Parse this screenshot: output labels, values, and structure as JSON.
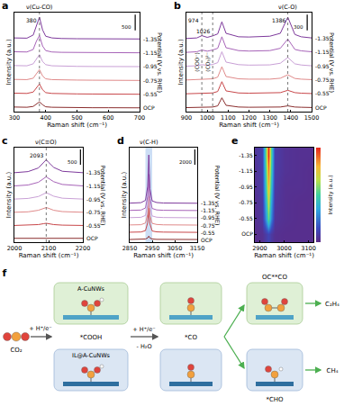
{
  "chart_data": [
    {
      "type": "line",
      "panel": "a",
      "x_label": "Raman shift (cm⁻¹)",
      "y_label": "Intensity (a.u.)",
      "y2_label": "Potential (V vs. RHE)",
      "x": [
        300,
        340,
        360,
        370,
        380,
        390,
        400,
        420,
        450,
        500,
        550,
        600,
        650,
        700
      ],
      "series": [
        {
          "name": "OCP",
          "color": "#8b2e2e",
          "values": [
            0.1,
            0.08,
            0.15,
            0.35,
            0.55,
            0.3,
            0.12,
            0.08,
            0.06,
            0.05,
            0.04,
            0.04,
            0.03,
            0.03
          ]
        },
        {
          "name": "-0.55",
          "color": "#c8474a",
          "values": [
            1.3,
            1.28,
            1.4,
            1.75,
            2.1,
            1.6,
            1.35,
            1.28,
            1.25,
            1.24,
            1.23,
            1.22,
            1.22,
            1.21
          ]
        },
        {
          "name": "-0.75",
          "color": "#e08a8a",
          "values": [
            2.5,
            2.48,
            2.6,
            3.0,
            3.35,
            2.8,
            2.55,
            2.48,
            2.45,
            2.44,
            2.43,
            2.42,
            2.42,
            2.41
          ]
        },
        {
          "name": "-0.95",
          "color": "#c9a0d6",
          "values": [
            3.7,
            3.68,
            3.85,
            4.3,
            4.65,
            4.05,
            3.78,
            3.68,
            3.65,
            3.63,
            3.62,
            3.62,
            3.61,
            3.61
          ]
        },
        {
          "name": "-1.15",
          "color": "#a763b8",
          "values": [
            4.9,
            4.88,
            5.1,
            5.8,
            6.3,
            5.4,
            5.0,
            4.88,
            4.85,
            4.83,
            4.82,
            4.82,
            4.81,
            4.81
          ]
        },
        {
          "name": "-1.35",
          "color": "#7e3a9c",
          "values": [
            6.1,
            6.08,
            6.35,
            7.2,
            7.9,
            6.8,
            6.25,
            6.1,
            6.05,
            6.03,
            6.02,
            6.02,
            6.01,
            6.01
          ]
        }
      ],
      "xlim": [
        300,
        700
      ],
      "xticks": [
        300,
        400,
        500,
        600,
        700
      ],
      "ylim": [
        -0.3,
        8.3
      ],
      "tick_labels": "x",
      "scale_bar": 500,
      "peaks": [
        380
      ],
      "labels": [
        {
          "text": "ν(Cu-CO)",
          "x": 380
        }
      ]
    },
    {
      "type": "line",
      "panel": "b",
      "x_label": "Raman shift (cm⁻¹)",
      "y_label": "Intensity (a.u.)",
      "y2_label": "Potential (V vs. RHE)",
      "x": [
        900,
        950,
        974,
        1000,
        1026,
        1050,
        1070,
        1090,
        1150,
        1200,
        1300,
        1350,
        1386,
        1420,
        1450,
        1500
      ],
      "series": [
        {
          "name": "OCP",
          "color": "#8b2e2e",
          "values": [
            0.05,
            0.06,
            0.08,
            0.07,
            0.1,
            0.2,
            0.9,
            0.25,
            0.1,
            0.08,
            0.08,
            0.1,
            0.2,
            0.1,
            0.08,
            0.06
          ]
        },
        {
          "name": "-0.55",
          "color": "#c8474a",
          "values": [
            1.25,
            1.26,
            1.3,
            1.28,
            1.32,
            1.45,
            2.3,
            1.5,
            1.32,
            1.3,
            1.3,
            1.35,
            1.55,
            1.35,
            1.3,
            1.27
          ]
        },
        {
          "name": "-0.75",
          "color": "#e08a8a",
          "values": [
            2.45,
            2.47,
            2.52,
            2.5,
            2.55,
            2.7,
            3.6,
            2.75,
            2.55,
            2.52,
            2.52,
            2.6,
            2.9,
            2.58,
            2.52,
            2.48
          ]
        },
        {
          "name": "-0.95",
          "color": "#c9a0d6",
          "values": [
            3.65,
            3.68,
            3.78,
            3.72,
            3.8,
            3.95,
            4.9,
            4.0,
            3.78,
            3.74,
            3.76,
            3.9,
            4.4,
            3.85,
            3.75,
            3.68
          ]
        },
        {
          "name": "-1.15",
          "color": "#a763b8",
          "values": [
            4.85,
            4.9,
            5.05,
            4.95,
            5.05,
            5.2,
            6.2,
            5.25,
            5.0,
            4.96,
            5.0,
            5.2,
            6.0,
            5.1,
            4.98,
            4.9
          ]
        },
        {
          "name": "-1.35",
          "color": "#7e3a9c",
          "values": [
            6.05,
            6.1,
            6.3,
            6.15,
            6.28,
            6.45,
            7.5,
            6.5,
            6.2,
            6.18,
            6.25,
            6.5,
            7.9,
            6.4,
            6.2,
            6.1
          ]
        }
      ],
      "xlim": [
        900,
        1500
      ],
      "xticks": [
        900,
        1000,
        1100,
        1200,
        1300,
        1400,
        1500
      ],
      "ylim": [
        -0.3,
        8.3
      ],
      "tick_labels": "x",
      "scale_bar": 300,
      "peaks": [
        974,
        1026,
        1386
      ],
      "labels": [
        {
          "text": "(COO⁻)",
          "x": 974
        },
        {
          "text": "(CO₃)²⁻",
          "x": 1026
        },
        {
          "text": "ν(C-O)",
          "x": 1386
        }
      ]
    },
    {
      "type": "line",
      "panel": "c",
      "x_label": "Raman shift (cm⁻¹)",
      "y_label": "Intensity (a.u.)",
      "y2_label": "Potential (V vs. RHE)",
      "x": [
        2000,
        2040,
        2070,
        2085,
        2093,
        2100,
        2115,
        2140,
        2170,
        2200
      ],
      "series": [
        {
          "name": "OCP",
          "color": "#8b2e2e",
          "values": [
            0.05,
            0.05,
            0.06,
            0.07,
            0.08,
            0.07,
            0.06,
            0.05,
            0.05,
            0.05
          ]
        },
        {
          "name": "-0.55",
          "color": "#c8474a",
          "values": [
            1.22,
            1.24,
            1.3,
            1.38,
            1.42,
            1.38,
            1.3,
            1.25,
            1.23,
            1.22
          ]
        },
        {
          "name": "-0.75",
          "color": "#e08a8a",
          "values": [
            2.42,
            2.46,
            2.6,
            2.78,
            2.85,
            2.78,
            2.6,
            2.48,
            2.44,
            2.42
          ]
        },
        {
          "name": "-0.95",
          "color": "#c9a0d6",
          "values": [
            3.62,
            3.68,
            3.85,
            4.1,
            4.2,
            4.1,
            3.88,
            3.7,
            3.65,
            3.62
          ]
        },
        {
          "name": "-1.15",
          "color": "#a763b8",
          "values": [
            4.82,
            4.9,
            5.15,
            5.5,
            5.65,
            5.5,
            5.2,
            4.95,
            4.86,
            4.82
          ]
        },
        {
          "name": "-1.35",
          "color": "#7e3a9c",
          "values": [
            6.02,
            6.12,
            6.45,
            6.95,
            7.2,
            6.95,
            6.5,
            6.15,
            6.06,
            6.02
          ]
        }
      ],
      "xlim": [
        2000,
        2200
      ],
      "xticks": [
        2000,
        2100,
        2200
      ],
      "ylim": [
        -0.3,
        8.3
      ],
      "tick_labels": "x",
      "scale_bar": 500,
      "peaks": [
        2093
      ],
      "labels": [
        {
          "text": "ν(C≡O)",
          "x": 2093
        }
      ]
    },
    {
      "type": "line",
      "panel": "d",
      "x_label": "Raman shift (cm⁻¹)",
      "y_label": "Intensity (a.u.)",
      "y2_label": "Potential (V vs. RHE)",
      "x": [
        2850,
        2900,
        2920,
        2930,
        2935,
        2940,
        2950,
        2970,
        3000,
        3050,
        3100,
        3150
      ],
      "series": [
        {
          "name": "OCP",
          "color": "#8b2e2e",
          "values": [
            0.02,
            0.03,
            0.06,
            0.15,
            0.3,
            0.14,
            0.06,
            0.03,
            0.02,
            0.02,
            0.02,
            0.02
          ]
        },
        {
          "name": "-0.55",
          "color": "#c8474a",
          "values": [
            0.62,
            0.64,
            0.75,
            1.4,
            2.6,
            1.3,
            0.72,
            0.65,
            0.63,
            0.62,
            0.62,
            0.61
          ]
        },
        {
          "name": "-0.75",
          "color": "#e08a8a",
          "values": [
            1.22,
            1.24,
            1.38,
            2.1,
            3.6,
            2.0,
            1.35,
            1.26,
            1.23,
            1.22,
            1.22,
            1.21
          ]
        },
        {
          "name": "-0.95",
          "color": "#c9a0d6",
          "values": [
            1.82,
            1.85,
            2.0,
            2.85,
            4.6,
            2.7,
            1.96,
            1.86,
            1.83,
            1.82,
            1.82,
            1.81
          ]
        },
        {
          "name": "-1.15",
          "color": "#a763b8",
          "values": [
            2.42,
            2.45,
            2.62,
            3.55,
            5.4,
            3.4,
            2.58,
            2.46,
            2.43,
            2.42,
            2.42,
            2.41
          ]
        },
        {
          "name": "-1.35",
          "color": "#7e3a9c",
          "values": [
            3.02,
            3.06,
            3.25,
            4.4,
            7.0,
            4.2,
            3.2,
            3.07,
            3.03,
            3.02,
            3.02,
            3.01
          ]
        }
      ],
      "xlim": [
        2850,
        3150
      ],
      "xticks": [
        2850,
        2950,
        3050,
        3150
      ],
      "ylim": [
        -0.2,
        7.6
      ],
      "tick_labels": "x",
      "scale_bar": 2000,
      "band": [
        2920,
        2950
      ],
      "labels": [
        {
          "text": "ν(C-H)",
          "x": 2935
        }
      ]
    },
    {
      "type": "heatmap",
      "panel": "e",
      "x_label": "Raman shift (cm⁻¹)",
      "colorbar_title": "Intensity (a.u.)",
      "x": [
        2880,
        2910,
        2925,
        2935,
        2945,
        2960,
        3000,
        3060,
        3120
      ],
      "y": [
        "OCP",
        "-0.55",
        "-0.75",
        "-0.95",
        "-1.15",
        "-1.35"
      ],
      "z": [
        [
          0.02,
          0.03,
          0.08,
          0.12,
          0.07,
          0.03,
          0.02,
          0.02,
          0.02
        ],
        [
          0.03,
          0.06,
          0.3,
          0.55,
          0.28,
          0.05,
          0.03,
          0.02,
          0.02
        ],
        [
          0.03,
          0.07,
          0.38,
          0.68,
          0.35,
          0.06,
          0.03,
          0.02,
          0.02
        ],
        [
          0.04,
          0.08,
          0.45,
          0.8,
          0.42,
          0.07,
          0.03,
          0.03,
          0.02
        ],
        [
          0.04,
          0.09,
          0.5,
          0.88,
          0.48,
          0.08,
          0.04,
          0.03,
          0.02
        ],
        [
          0.05,
          0.1,
          0.55,
          1.0,
          0.52,
          0.09,
          0.04,
          0.03,
          0.03
        ]
      ],
      "xlim": [
        2880,
        3120
      ],
      "xticks": [
        2900,
        3000,
        3100
      ],
      "zlim": [
        0,
        1
      ]
    }
  ],
  "diagram": {
    "panel": "f",
    "reactant": "CO₂",
    "steps": [
      "+ H⁺/e⁻",
      "+ H⁺/e⁻",
      "- H₂O"
    ],
    "catalysts": [
      "A-CuNWs",
      "IL@A-CuNWs"
    ],
    "intermediates": [
      "*COOH",
      "*CO",
      "OC**CO",
      "*CHO"
    ],
    "products": [
      "C₂H₄",
      "CH₄"
    ]
  }
}
